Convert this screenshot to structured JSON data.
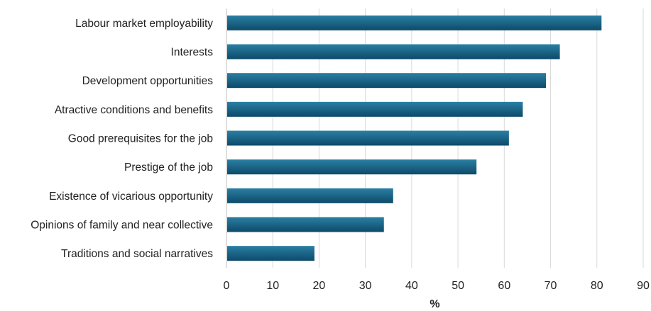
{
  "chart_data": {
    "type": "bar",
    "orientation": "horizontal",
    "categories": [
      "Labour market employability",
      "Interests",
      "Development opportunities",
      "Atractive conditions and benefits",
      "Good prerequisites for the job",
      "Prestige of the job",
      "Existence of vicarious opportunity",
      "Opinions of family and near collective",
      "Traditions and social narratives"
    ],
    "values": [
      81,
      72,
      69,
      64,
      61,
      54,
      36,
      34,
      19
    ],
    "xlabel": "%",
    "xlim": [
      0,
      90
    ],
    "xticks": [
      "0",
      "10",
      "20",
      "30",
      "40",
      "50",
      "60",
      "70",
      "80",
      "90"
    ],
    "grid": "vertical",
    "legend": "none",
    "colors": {
      "bar_light": "#2a7fa3",
      "bar_dark": "#0d4a6a",
      "grid": "#d9d9d9",
      "axis": "#bfbfbf"
    }
  }
}
